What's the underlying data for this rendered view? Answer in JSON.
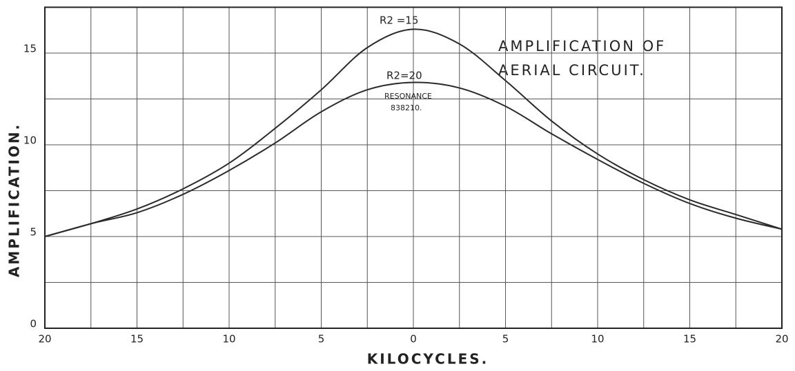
{
  "chart_data": {
    "type": "line",
    "title": [
      "AMPLIFICATION OF",
      "AERIAL CIRCUIT."
    ],
    "x_label": "KILOCYCLES.",
    "y_label": "AMPLIFICATION.",
    "x": [
      -20,
      -17.5,
      -15,
      -12.5,
      -10,
      -7.5,
      -5,
      -2.5,
      0,
      2.5,
      5,
      7.5,
      10,
      12.5,
      15,
      17.5,
      20
    ],
    "series": [
      {
        "name": "R2 =15",
        "color": "#2a2a2a",
        "values": [
          5.0,
          5.7,
          6.5,
          7.6,
          9.0,
          10.9,
          13.0,
          15.3,
          16.3,
          15.5,
          13.5,
          11.3,
          9.5,
          8.1,
          7.0,
          6.2,
          5.4
        ]
      },
      {
        "name": "R2=20",
        "color": "#2a2a2a",
        "values": [
          5.0,
          5.7,
          6.3,
          7.3,
          8.6,
          10.1,
          11.8,
          13.0,
          13.4,
          13.1,
          12.1,
          10.6,
          9.2,
          7.9,
          6.8,
          6.0,
          5.4
        ]
      }
    ],
    "annotations": [
      "RESONANCE",
      "838210."
    ],
    "xlim": [
      -20,
      20
    ],
    "ylim": [
      0,
      17.5
    ],
    "xticks": [
      {
        "value": -20,
        "label": "20"
      },
      {
        "value": -15,
        "label": "15"
      },
      {
        "value": -10,
        "label": "10"
      },
      {
        "value": -5,
        "label": "5"
      },
      0,
      5,
      10,
      15,
      20
    ],
    "yticks": [
      0,
      5,
      10,
      15
    ],
    "xgrid": [
      -17.5,
      -15,
      -12.5,
      -10,
      -7.5,
      -5,
      -2.5,
      0,
      2.5,
      5,
      7.5,
      10,
      12.5,
      15,
      17.5
    ],
    "ygrid": [
      2.5,
      5,
      7.5,
      10,
      12.5,
      15
    ],
    "grid": true
  }
}
